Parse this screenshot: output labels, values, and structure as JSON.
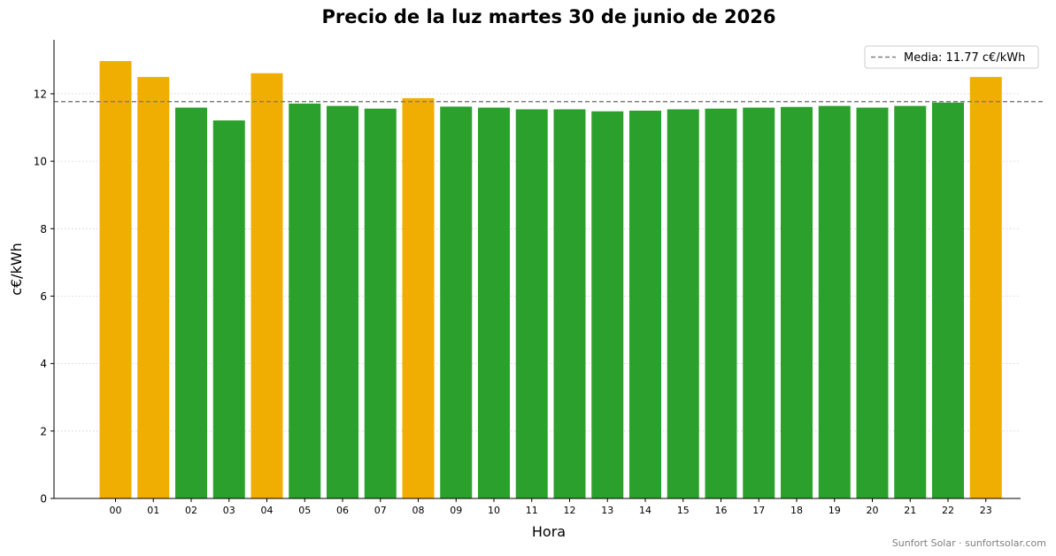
{
  "chart_data": {
    "type": "bar",
    "title": "Precio de la luz martes 30 de junio de 2026",
    "xlabel": "Hora",
    "ylabel": "c€/kWh",
    "categories": [
      "00",
      "01",
      "02",
      "03",
      "04",
      "05",
      "06",
      "07",
      "08",
      "09",
      "10",
      "11",
      "12",
      "13",
      "14",
      "15",
      "16",
      "17",
      "18",
      "19",
      "20",
      "21",
      "22",
      "23"
    ],
    "values": [
      12.97,
      12.5,
      11.59,
      11.21,
      12.61,
      11.71,
      11.64,
      11.56,
      11.87,
      11.62,
      11.59,
      11.54,
      11.54,
      11.48,
      11.5,
      11.54,
      11.56,
      11.59,
      11.61,
      11.64,
      11.59,
      11.64,
      11.74,
      12.5
    ],
    "highlighted": [
      true,
      true,
      false,
      false,
      true,
      false,
      false,
      false,
      true,
      false,
      false,
      false,
      false,
      false,
      false,
      false,
      false,
      false,
      false,
      false,
      false,
      false,
      false,
      true
    ],
    "colors": {
      "above_mean": "#f0ad02",
      "below_mean": "#2ca02c",
      "mean_line": "#808080",
      "grid": "#cccccc"
    },
    "mean": {
      "value": 11.77,
      "label": "Media: 11.77 c€/kWh"
    },
    "ylim": [
      0,
      13.6
    ],
    "yticks": [
      0,
      2,
      4,
      6,
      8,
      10,
      12
    ],
    "grid": "y-dotted",
    "legend": "top-right"
  },
  "footer": "Sunfort Solar · sunfortsolar.com"
}
